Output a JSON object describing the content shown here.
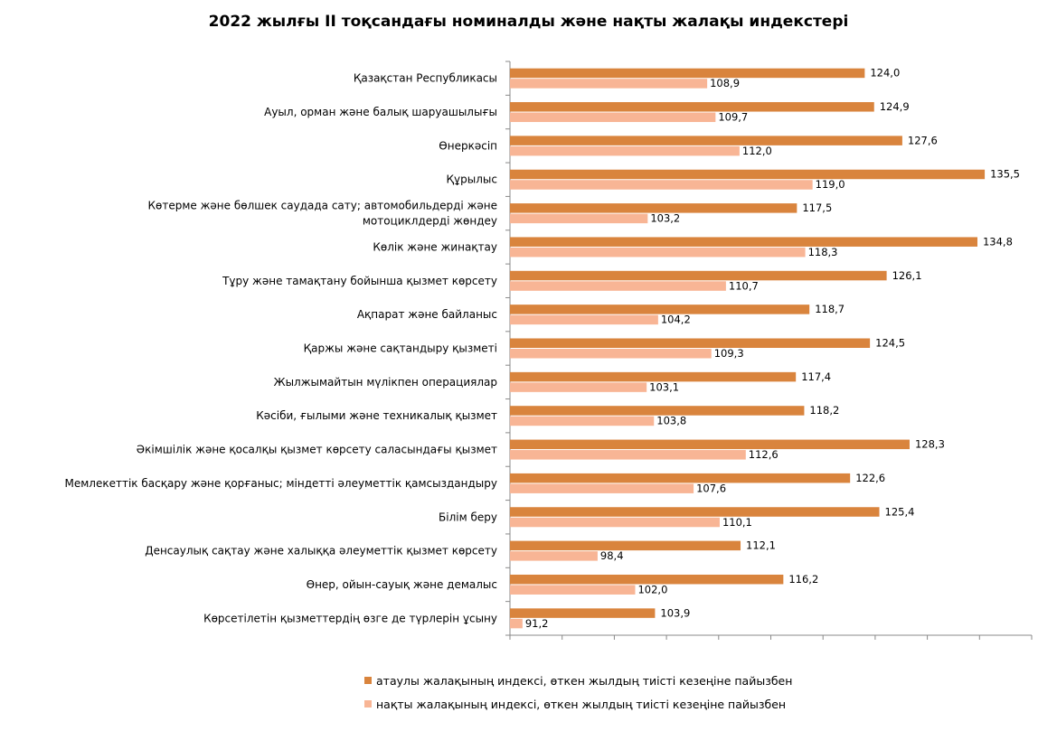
{
  "chart_data": {
    "type": "bar",
    "orientation": "horizontal",
    "title": "2022 жылғы ІІ тоқсандағы номиналды  және нақты жалақы индекстері",
    "categories": [
      "Қазақстан Республикасы",
      "Ауыл, орман және балық шаруашылығы",
      "Өнеркәсіп",
      "Құрылыс",
      "Көтерме және бөлшек саудада сату; автомобильдерді және мотоциклдерді жөндеу",
      "Көлік және жинақтау",
      "Тұру және тамақтану бойынша қызмет көрсету",
      "Ақпарат және байланыс",
      "Қаржы және сақтандыру қызметі",
      "Жылжымайтын мүлікпен операциялар",
      "Кәсіби, ғылыми және техникалық қызмет",
      "Әкімшілік және қосалқы  қызмет көрсету саласындағы қызмет",
      "Мемлекеттік басқару және қорғаныс; міндетті әлеуметтік қамсыздандыру",
      "Білім беру",
      "Денсаулық сақтау және халыққа әлеуметтік қызмет көрсету",
      "Өнер, ойын-сауық және демалыс",
      "Көрсетілетін қызметтердің өзге де түрлерін ұсыну"
    ],
    "category_lines": [
      [
        "Қазақстан Республикасы"
      ],
      [
        "Ауыл, орман және балық шаруашылығы"
      ],
      [
        "Өнеркәсіп"
      ],
      [
        "Құрылыс"
      ],
      [
        "Көтерме және бөлшек саудада сату; автомобильдерді және",
        "мотоциклдерді жөндеу"
      ],
      [
        "Көлік және жинақтау"
      ],
      [
        "Тұру және тамақтану бойынша қызмет көрсету"
      ],
      [
        "Ақпарат және байланыс"
      ],
      [
        "Қаржы және сақтандыру қызметі"
      ],
      [
        "Жылжымайтын мүлікпен операциялар"
      ],
      [
        "Кәсіби, ғылыми және техникалық қызмет"
      ],
      [
        "Әкімшілік және қосалқы  қызмет көрсету саласындағы қызмет"
      ],
      [
        "Мемлекеттік басқару және қорғаныс; міндетті әлеуметтік қамсыздандыру"
      ],
      [
        "Білім беру"
      ],
      [
        "Денсаулық сақтау және халыққа әлеуметтік қызмет көрсету"
      ],
      [
        "Өнер, ойын-сауық және демалыс"
      ],
      [
        "Көрсетілетін қызметтердің өзге де түрлерін ұсыну"
      ]
    ],
    "series": [
      {
        "name": "атаулы жалақының индексі, өткен жылдың тиісті кезеңіне пайызбен",
        "color": "#D9843D",
        "values": [
          124.0,
          124.9,
          127.6,
          135.5,
          117.5,
          134.8,
          126.1,
          118.7,
          124.5,
          117.4,
          118.2,
          128.3,
          122.6,
          125.4,
          112.1,
          116.2,
          103.9
        ],
        "labels": [
          "124,0",
          "124,9",
          "127,6",
          "135,5",
          "117,5",
          "134,8",
          "126,1",
          "118,7",
          "124,5",
          "117,4",
          "118,2",
          "128,3",
          "122,6",
          "125,4",
          "112,1",
          "116,2",
          "103,9"
        ]
      },
      {
        "name": "нақты жалақының индексі, өткен жылдың тиісті кезеңіне пайызбен",
        "color": "#F8B595",
        "values": [
          108.9,
          109.7,
          112.0,
          119.0,
          103.2,
          118.3,
          110.7,
          104.2,
          109.3,
          103.1,
          103.8,
          112.6,
          107.6,
          110.1,
          98.4,
          102.0,
          91.2
        ],
        "labels": [
          "108,9",
          "109,7",
          "112,0",
          "119,0",
          "103,2",
          "118,3",
          "110,7",
          "104,2",
          "109,3",
          "103,1",
          "103,8",
          "112,6",
          "107,6",
          "110,1",
          "98,4",
          "102,0",
          "91,2"
        ]
      }
    ],
    "xlim": [
      90,
      140
    ],
    "x_tick_step": 5,
    "x_tick_labels_shown": false,
    "grid": false,
    "legend_position": "bottom"
  }
}
